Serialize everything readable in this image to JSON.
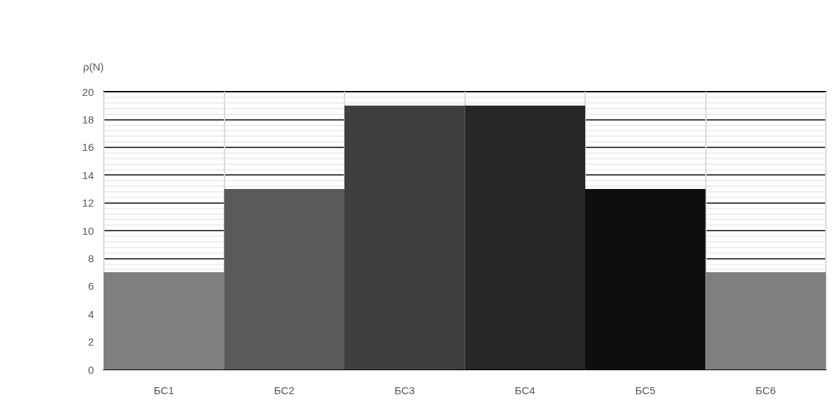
{
  "chart_data": {
    "type": "bar",
    "ylabel": "ρ(N)",
    "categories": [
      "БС1",
      "БС2",
      "БС3",
      "БС4",
      "БС5",
      "БС6"
    ],
    "values": [
      7,
      13,
      19,
      19,
      13,
      7
    ],
    "colors": [
      "#7f7f7f",
      "#595959",
      "#3f3f3f",
      "#262626",
      "#0d0d0d",
      "#7f7f7f"
    ],
    "ylim": [
      0,
      20
    ],
    "yticks": [
      0,
      2,
      4,
      6,
      8,
      10,
      12,
      14,
      16,
      18,
      20
    ],
    "grid": true
  }
}
